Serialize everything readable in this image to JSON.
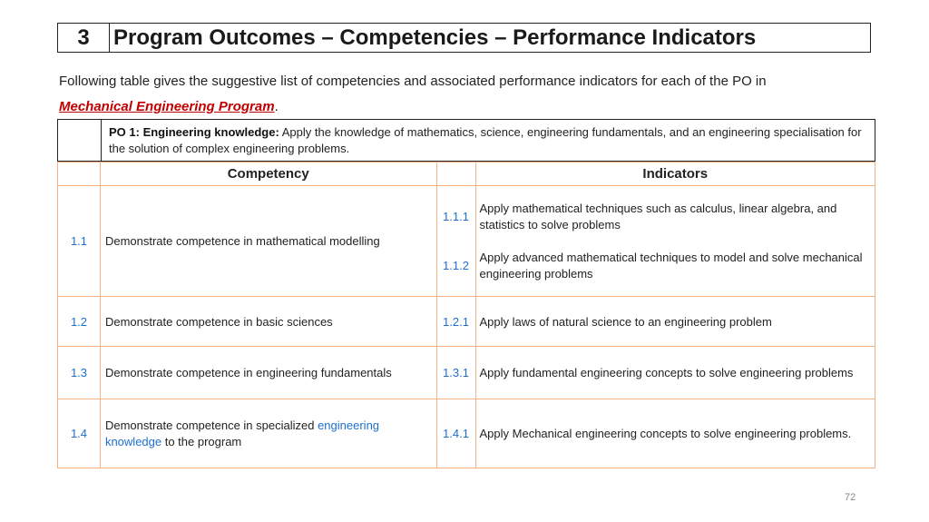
{
  "section": {
    "number": "3",
    "title": "Program Outcomes – Competencies – Performance Indicators"
  },
  "intro": {
    "text": "Following table gives the suggestive list of competencies and associated performance indicators for each of the PO in",
    "program": "Mechanical Engineering Program",
    "period": "."
  },
  "po": {
    "label": "PO 1: Engineering knowledge:",
    "description": "Apply the knowledge of mathematics, science, engineering fundamentals, and an engineering specialisation for the solution of complex engineering problems."
  },
  "table": {
    "headers": {
      "competency": "Competency",
      "indicators": "Indicators"
    },
    "rows": [
      {
        "num": "1.1",
        "competency": "Demonstrate competence in mathematical modelling",
        "indicators": [
          {
            "num": "1.1.1",
            "text": "Apply mathematical techniques such as calculus, linear algebra, and statistics to solve problems"
          },
          {
            "num": "1.1.2",
            "text": "Apply advanced mathematical techniques to model and solve mechanical engineering problems"
          }
        ]
      },
      {
        "num": "1.2",
        "competency": "Demonstrate competence in basic sciences",
        "indicators": [
          {
            "num": "1.2.1",
            "text": "Apply laws of natural science to an engineering problem"
          }
        ]
      },
      {
        "num": "1.3",
        "competency": "Demonstrate competence in engineering fundamentals",
        "indicators": [
          {
            "num": "1.3.1",
            "text": "Apply fundamental engineering concepts to solve engineering problems"
          }
        ]
      },
      {
        "num": "1.4",
        "competency_parts": [
          "Demonstrate competence in specialized ",
          "engineering knowledge",
          " to the program"
        ],
        "indicators": [
          {
            "num": "1.4.1",
            "text": "Apply Mechanical engineering concepts to solve engineering problems."
          }
        ]
      }
    ]
  },
  "page_number": "72"
}
